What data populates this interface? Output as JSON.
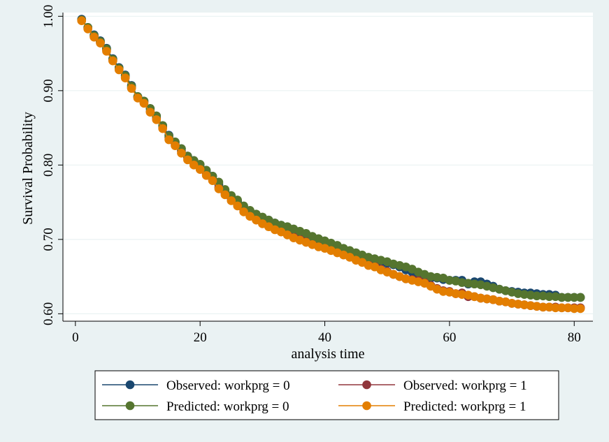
{
  "chart_data": {
    "type": "line",
    "xlabel": "analysis time",
    "ylabel": "Survival Probability",
    "xlim": [
      -2,
      83
    ],
    "ylim": [
      0.59,
      1.005
    ],
    "xticks": [
      0,
      20,
      40,
      60,
      80
    ],
    "xtick_labels": [
      "0",
      "20",
      "40",
      "60",
      "80"
    ],
    "yticks": [
      0.6,
      0.7,
      0.8,
      0.9,
      1.0
    ],
    "ytick_labels": [
      "0.60",
      "0.70",
      "0.80",
      "0.90",
      "1.00"
    ],
    "grid": true,
    "legend_position": "bottom",
    "colors": {
      "background": "#eaf2f3",
      "plot_background": "#ffffff",
      "grid": "#eaf2f3",
      "observed_0": "#1a476f",
      "observed_1": "#90353b",
      "predicted_0": "#55752f",
      "predicted_1": "#e37e00"
    },
    "series": [
      {
        "name": "Observed: workprg = 0",
        "color": "#1a476f",
        "x": [
          1,
          2,
          3,
          4,
          5,
          6,
          7,
          8,
          9,
          10,
          11,
          12,
          13,
          14,
          15,
          16,
          17,
          18,
          19,
          20,
          21,
          22,
          23,
          24,
          25,
          26,
          27,
          28,
          29,
          30,
          31,
          32,
          33,
          34,
          35,
          36,
          37,
          38,
          39,
          40,
          41,
          42,
          43,
          44,
          45,
          46,
          47,
          48,
          49,
          50,
          51,
          52,
          53,
          54,
          55,
          56,
          57,
          58,
          59,
          60,
          61,
          62,
          63,
          64,
          65,
          66,
          67,
          68,
          69,
          70,
          71,
          72,
          73,
          74,
          75,
          76,
          77,
          78,
          79,
          80,
          81
        ],
        "y": [
          0.996,
          0.985,
          0.975,
          0.967,
          0.957,
          0.943,
          0.931,
          0.921,
          0.907,
          0.892,
          0.886,
          0.876,
          0.866,
          0.853,
          0.84,
          0.831,
          0.822,
          0.812,
          0.806,
          0.8,
          0.791,
          0.785,
          0.774,
          0.766,
          0.758,
          0.751,
          0.743,
          0.738,
          0.733,
          0.729,
          0.726,
          0.722,
          0.719,
          0.716,
          0.712,
          0.709,
          0.706,
          0.703,
          0.699,
          0.697,
          0.694,
          0.69,
          0.686,
          0.684,
          0.681,
          0.677,
          0.675,
          0.672,
          0.67,
          0.668,
          0.666,
          0.663,
          0.659,
          0.656,
          0.652,
          0.65,
          0.648,
          0.648,
          0.646,
          0.645,
          0.645,
          0.645,
          0.64,
          0.643,
          0.643,
          0.64,
          0.637,
          0.633,
          0.631,
          0.63,
          0.629,
          0.628,
          0.628,
          0.627,
          0.626,
          0.626,
          0.625,
          0.622,
          0.622,
          0.622,
          0.622
        ]
      },
      {
        "name": "Observed: workprg = 1",
        "color": "#90353b",
        "x": [
          1,
          2,
          3,
          4,
          5,
          6,
          7,
          8,
          9,
          10,
          11,
          12,
          13,
          14,
          15,
          16,
          17,
          18,
          19,
          20,
          21,
          22,
          23,
          24,
          25,
          26,
          27,
          28,
          29,
          30,
          31,
          32,
          33,
          34,
          35,
          36,
          37,
          38,
          39,
          40,
          41,
          42,
          43,
          44,
          45,
          46,
          47,
          48,
          49,
          50,
          51,
          52,
          53,
          54,
          55,
          56,
          57,
          58,
          59,
          60,
          61,
          62,
          63,
          64,
          65,
          66,
          67,
          68,
          69,
          70,
          71,
          72,
          73,
          74,
          75,
          76,
          77,
          78,
          79,
          80,
          81
        ],
        "y": [
          0.995,
          0.984,
          0.973,
          0.965,
          0.955,
          0.941,
          0.929,
          0.918,
          0.904,
          0.891,
          0.884,
          0.872,
          0.863,
          0.851,
          0.837,
          0.828,
          0.819,
          0.81,
          0.803,
          0.796,
          0.788,
          0.781,
          0.77,
          0.762,
          0.754,
          0.747,
          0.74,
          0.734,
          0.728,
          0.724,
          0.72,
          0.716,
          0.713,
          0.709,
          0.705,
          0.702,
          0.699,
          0.696,
          0.693,
          0.69,
          0.687,
          0.684,
          0.681,
          0.678,
          0.674,
          0.67,
          0.666,
          0.665,
          0.66,
          0.657,
          0.653,
          0.65,
          0.647,
          0.646,
          0.645,
          0.643,
          0.638,
          0.634,
          0.631,
          0.63,
          0.627,
          0.628,
          0.623,
          0.623,
          0.621,
          0.62,
          0.619,
          0.617,
          0.616,
          0.614,
          0.613,
          0.612,
          0.611,
          0.61,
          0.609,
          0.609,
          0.609,
          0.608,
          0.608,
          0.608,
          0.608
        ]
      },
      {
        "name": "Predicted: workprg = 0",
        "color": "#55752f",
        "x": [
          1,
          2,
          3,
          4,
          5,
          6,
          7,
          8,
          9,
          10,
          11,
          12,
          13,
          14,
          15,
          16,
          17,
          18,
          19,
          20,
          21,
          22,
          23,
          24,
          25,
          26,
          27,
          28,
          29,
          30,
          31,
          32,
          33,
          34,
          35,
          36,
          37,
          38,
          39,
          40,
          41,
          42,
          43,
          44,
          45,
          46,
          47,
          48,
          49,
          50,
          51,
          52,
          53,
          54,
          55,
          56,
          57,
          58,
          59,
          60,
          61,
          62,
          63,
          64,
          65,
          66,
          67,
          68,
          69,
          70,
          71,
          72,
          73,
          74,
          75,
          76,
          77,
          78,
          79,
          80,
          81
        ],
        "y": [
          0.995,
          0.985,
          0.974,
          0.966,
          0.956,
          0.942,
          0.93,
          0.92,
          0.906,
          0.892,
          0.886,
          0.876,
          0.866,
          0.853,
          0.839,
          0.831,
          0.822,
          0.812,
          0.806,
          0.801,
          0.793,
          0.785,
          0.777,
          0.767,
          0.759,
          0.753,
          0.745,
          0.739,
          0.734,
          0.73,
          0.726,
          0.722,
          0.719,
          0.717,
          0.714,
          0.711,
          0.708,
          0.704,
          0.701,
          0.698,
          0.695,
          0.692,
          0.688,
          0.685,
          0.682,
          0.679,
          0.676,
          0.674,
          0.672,
          0.67,
          0.667,
          0.665,
          0.663,
          0.66,
          0.656,
          0.653,
          0.65,
          0.649,
          0.648,
          0.645,
          0.644,
          0.642,
          0.641,
          0.64,
          0.639,
          0.637,
          0.635,
          0.633,
          0.631,
          0.629,
          0.627,
          0.626,
          0.625,
          0.624,
          0.624,
          0.623,
          0.623,
          0.622,
          0.622,
          0.622,
          0.622
        ]
      },
      {
        "name": "Predicted: workprg = 1",
        "color": "#e37e00",
        "x": [
          1,
          2,
          3,
          4,
          5,
          6,
          7,
          8,
          9,
          10,
          11,
          12,
          13,
          14,
          15,
          16,
          17,
          18,
          19,
          20,
          21,
          22,
          23,
          24,
          25,
          26,
          27,
          28,
          29,
          30,
          31,
          32,
          33,
          34,
          35,
          36,
          37,
          38,
          39,
          40,
          41,
          42,
          43,
          44,
          45,
          46,
          47,
          48,
          49,
          50,
          51,
          52,
          53,
          54,
          55,
          56,
          57,
          58,
          59,
          60,
          61,
          62,
          63,
          64,
          65,
          66,
          67,
          68,
          69,
          70,
          71,
          72,
          73,
          74,
          75,
          76,
          77,
          78,
          79,
          80,
          81
        ],
        "y": [
          0.994,
          0.983,
          0.972,
          0.964,
          0.953,
          0.94,
          0.928,
          0.917,
          0.903,
          0.89,
          0.883,
          0.871,
          0.861,
          0.849,
          0.834,
          0.826,
          0.816,
          0.807,
          0.8,
          0.794,
          0.786,
          0.779,
          0.768,
          0.76,
          0.752,
          0.745,
          0.737,
          0.731,
          0.726,
          0.721,
          0.717,
          0.713,
          0.71,
          0.706,
          0.702,
          0.699,
          0.696,
          0.693,
          0.69,
          0.688,
          0.685,
          0.682,
          0.679,
          0.676,
          0.672,
          0.669,
          0.665,
          0.663,
          0.659,
          0.656,
          0.653,
          0.65,
          0.647,
          0.645,
          0.643,
          0.641,
          0.637,
          0.633,
          0.63,
          0.629,
          0.627,
          0.626,
          0.625,
          0.623,
          0.621,
          0.62,
          0.619,
          0.617,
          0.616,
          0.614,
          0.613,
          0.612,
          0.611,
          0.61,
          0.609,
          0.609,
          0.608,
          0.608,
          0.608,
          0.607,
          0.607
        ]
      }
    ]
  }
}
